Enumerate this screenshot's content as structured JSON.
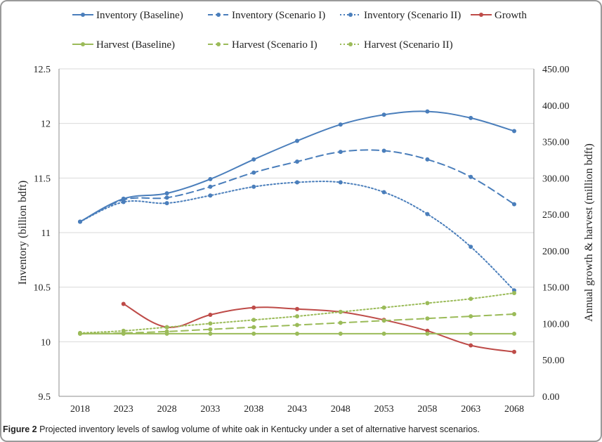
{
  "figure": {
    "caption_label": "Figure 2",
    "caption_text": "Projected inventory levels of sawlog volume of white oak in Kentucky under a set of alternative harvest scenarios."
  },
  "chart_data": {
    "type": "line",
    "title": "",
    "xlabel": "",
    "ylabel_left": "Inventory (billion bdft)",
    "ylabel_right": "Annual growth & harvest (million bdft)",
    "x": [
      2018,
      2023,
      2028,
      2033,
      2038,
      2043,
      2048,
      2053,
      2058,
      2063,
      2068
    ],
    "y_left": {
      "min": 9.5,
      "max": 12.5,
      "step": 0.5,
      "tick_labels": [
        "9.5",
        "10",
        "10.5",
        "11",
        "11.5",
        "12",
        "12.5"
      ]
    },
    "y_right": {
      "min": 0,
      "max": 450,
      "step": 50,
      "tick_labels": [
        "0.00",
        "50.00",
        "100.00",
        "150.00",
        "200.00",
        "250.00",
        "300.00",
        "350.00",
        "400.00",
        "450.00"
      ]
    },
    "grid": "horizontal",
    "legend_position": "top",
    "series": [
      {
        "name": "Inventory (Baseline)",
        "axis": "left",
        "color": "#4a7ebb",
        "dash": "solid",
        "values": [
          11.1,
          11.31,
          11.36,
          11.49,
          11.67,
          11.84,
          11.99,
          12.08,
          12.11,
          12.05,
          11.93
        ]
      },
      {
        "name": "Inventory (Scenario I)",
        "axis": "left",
        "color": "#4a7ebb",
        "dash": "dashed",
        "values": [
          11.1,
          11.3,
          11.32,
          11.42,
          11.55,
          11.65,
          11.74,
          11.75,
          11.67,
          11.51,
          11.26
        ]
      },
      {
        "name": "Inventory (Scenario II)",
        "axis": "left",
        "color": "#4a7ebb",
        "dash": "dotted",
        "values": [
          11.1,
          11.28,
          11.27,
          11.34,
          11.42,
          11.46,
          11.46,
          11.37,
          11.17,
          10.87,
          10.47
        ]
      },
      {
        "name": "Growth",
        "axis": "right",
        "color": "#be4b48",
        "dash": "solid",
        "values": [
          null,
          127,
          95,
          112,
          122,
          120,
          116,
          105,
          90,
          70,
          61
        ]
      },
      {
        "name": "Harvest (Baseline)",
        "axis": "right",
        "color": "#9bbb59",
        "dash": "solid",
        "values": [
          86,
          86,
          86,
          86,
          86,
          86,
          86,
          86,
          86,
          86,
          86
        ]
      },
      {
        "name": "Harvest (Scenario I)",
        "axis": "right",
        "color": "#9bbb59",
        "dash": "dashed",
        "values": [
          86,
          87,
          89,
          92,
          95,
          98,
          101,
          104,
          107,
          110,
          113
        ]
      },
      {
        "name": "Harvest (Scenario II)",
        "axis": "right",
        "color": "#9bbb59",
        "dash": "dotted",
        "values": [
          87,
          90,
          95,
          100,
          105,
          110,
          116,
          122,
          128,
          134,
          142
        ]
      }
    ]
  }
}
